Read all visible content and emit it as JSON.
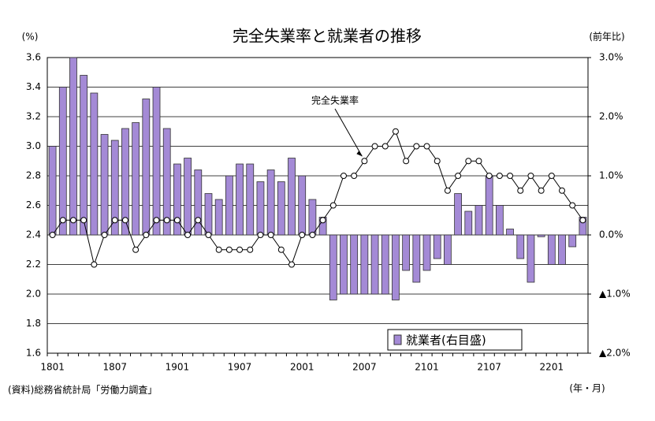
{
  "chart_data": {
    "type": "bar_line",
    "title": "完全失業率と就業者の推移",
    "y_unit": "(%)",
    "y2_unit": "(前年比)",
    "x_unit": "(年・月)",
    "source": "(資料)総務省統計局「労働力調査」",
    "categories": [
      "1801",
      null,
      null,
      null,
      null,
      null,
      "1807",
      null,
      null,
      null,
      null,
      null,
      "1901",
      null,
      null,
      null,
      null,
      null,
      "1907",
      null,
      null,
      null,
      null,
      null,
      "2001",
      null,
      null,
      null,
      null,
      null,
      "2007",
      null,
      null,
      null,
      null,
      null,
      "2101",
      null,
      null,
      null,
      null,
      null,
      "2107",
      null,
      null,
      null,
      null,
      null,
      "2201",
      null,
      null,
      null
    ],
    "ylim": [
      1.6,
      3.6
    ],
    "yticks": [
      1.6,
      1.8,
      {
        "value": 2.0,
        "label": "2.0"
      },
      2.2,
      2.4,
      2.6,
      2.8,
      {
        "value": 3.0,
        "label": "3.0"
      },
      3.2,
      3.4,
      3.6
    ],
    "y2lim": [
      -2,
      3
    ],
    "y2ticks": [
      {
        "value": -2,
        "label": "▲2.0%"
      },
      {
        "value": -1,
        "label": "▲1.0%"
      },
      {
        "value": 0,
        "label": "0.0%"
      },
      {
        "value": 1,
        "label": "1.0%"
      },
      {
        "value": 2,
        "label": "2.0%"
      },
      {
        "value": 3,
        "label": "3.0%"
      }
    ],
    "grid": true,
    "legend": "lower right",
    "series": [
      {
        "name": "就業者(右目盛)",
        "type": "bar",
        "axis": "y2",
        "color": "#a48ad6",
        "values": [
          1.5,
          2.5,
          3.0,
          2.7,
          2.4,
          1.7,
          1.6,
          1.8,
          1.9,
          2.3,
          2.5,
          1.8,
          1.2,
          1.3,
          1.1,
          0.7,
          0.6,
          1.0,
          1.2,
          1.2,
          0.9,
          1.1,
          0.9,
          1.3,
          1.0,
          0.6,
          0.3,
          -1.1,
          -1.0,
          -1.0,
          -1.0,
          -1.0,
          -1.0,
          -1.1,
          -0.6,
          -0.8,
          -0.6,
          -0.4,
          -0.5,
          0.7,
          0.4,
          0.5,
          1.0,
          0.5,
          0.1,
          -0.4,
          -0.8,
          -0.03,
          -0.5,
          -0.5,
          -0.2,
          0.3
        ]
      },
      {
        "name": "完全失業率",
        "type": "line",
        "axis": "y",
        "color": "#000000",
        "values": [
          2.4,
          2.5,
          2.5,
          2.5,
          2.2,
          2.4,
          2.5,
          2.5,
          2.3,
          2.4,
          2.5,
          2.5,
          2.5,
          2.4,
          2.5,
          2.4,
          2.3,
          2.3,
          2.3,
          2.3,
          2.4,
          2.4,
          2.3,
          2.2,
          2.4,
          2.4,
          2.5,
          2.6,
          2.8,
          2.8,
          2.9,
          3.0,
          3.0,
          3.1,
          2.9,
          3.0,
          3.0,
          2.9,
          2.7,
          2.8,
          2.9,
          2.9,
          2.8,
          2.8,
          2.8,
          2.7,
          2.8,
          2.7,
          2.8,
          2.7,
          2.6,
          2.5
        ]
      }
    ]
  }
}
